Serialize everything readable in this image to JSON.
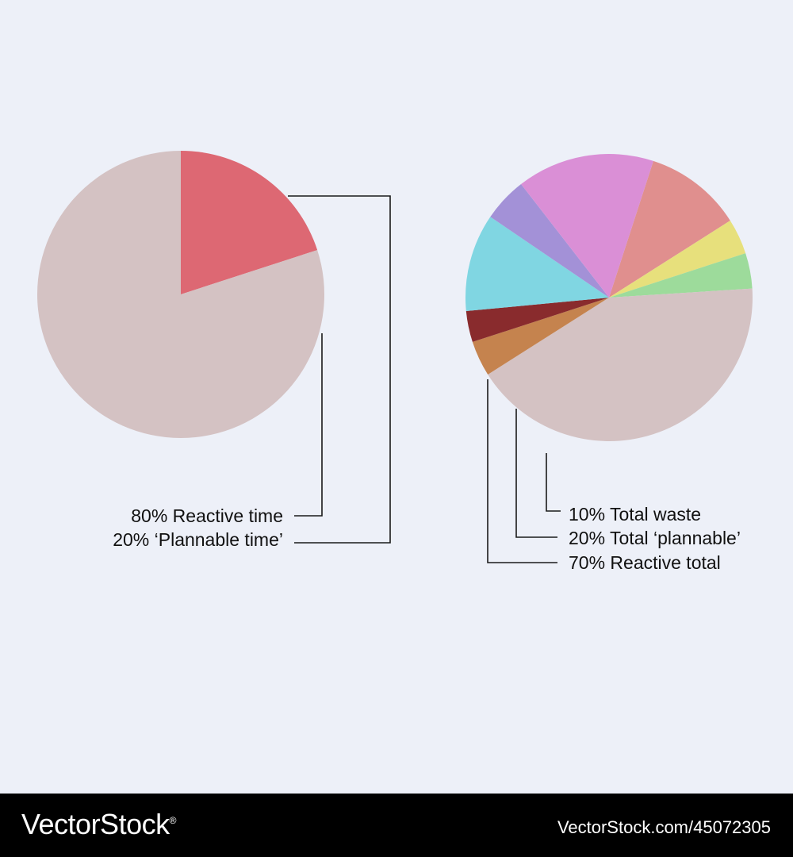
{
  "chart_data": [
    {
      "type": "pie",
      "slices": [
        {
          "value": 20,
          "color": "#dd6873"
        },
        {
          "value": 80,
          "color": "#d4c2c3"
        }
      ],
      "labels": [
        "80% Reactive time",
        "20% ‘Plannable time’"
      ]
    },
    {
      "type": "pie",
      "slices": [
        {
          "value": 11,
          "color": "#e08f8e"
        },
        {
          "value": 4,
          "color": "#e7e07c"
        },
        {
          "value": 4,
          "color": "#9ddb9b"
        },
        {
          "value": 42,
          "color": "#d4c2c3"
        },
        {
          "value": 4,
          "color": "#c5834e"
        },
        {
          "value": 3.5,
          "color": "#892b2d"
        },
        {
          "value": 11,
          "color": "#80d6e2"
        },
        {
          "value": 5,
          "color": "#a391d7"
        },
        {
          "value": 15.5,
          "color": "#da8fd6"
        }
      ],
      "labels": [
        "10% Total waste",
        "20% Total ‘plannable’",
        "70% Reactive total"
      ]
    }
  ],
  "footer": {
    "brand": "VectorStock",
    "brand_mark": "®",
    "stock_url": "VectorStock.com/45072305"
  }
}
